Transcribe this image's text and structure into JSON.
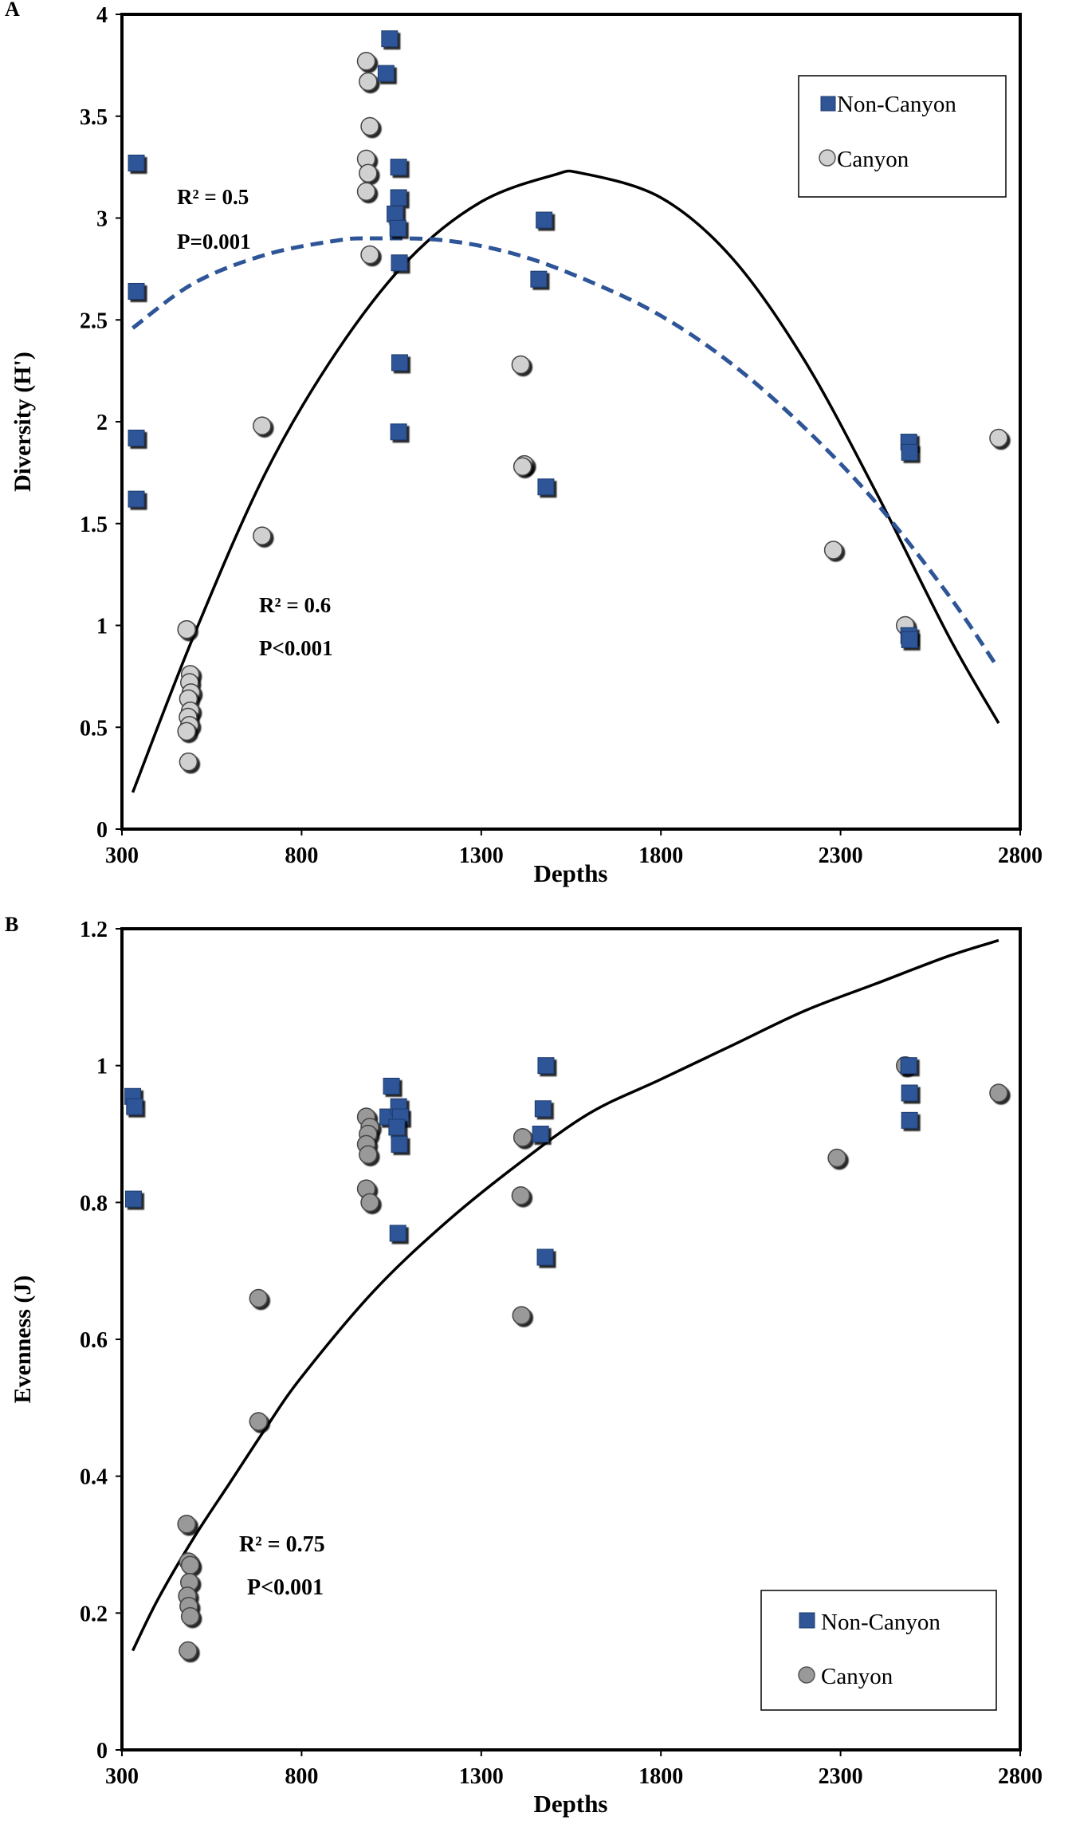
{
  "chart_data": [
    {
      "panel": "A",
      "type": "scatter",
      "xlabel": "Depths",
      "ylabel": "Diversity  (H')",
      "xlim": [
        300,
        2800
      ],
      "ylim": [
        0,
        4
      ],
      "xticks": [
        300,
        800,
        1300,
        1800,
        2300,
        2800
      ],
      "yticks": [
        0,
        0.5,
        1,
        1.5,
        2,
        2.5,
        3,
        3.5,
        4
      ],
      "ytick_labels": [
        "0",
        "0.5",
        "1",
        "1.5",
        "2",
        "2.5",
        "3",
        "3.5",
        "4"
      ],
      "legend": {
        "position": "top-right",
        "entries": [
          "Non-Canyon",
          "Canyon"
        ]
      },
      "colors": {
        "noncanyon": "#2f5597",
        "canyon": "#d0d0d0",
        "dashed": "#2e5597",
        "solid": "#000000"
      },
      "series": [
        {
          "name": "Non-Canyon",
          "marker": "square",
          "points": [
            [
              340,
              3.27
            ],
            [
              340,
              2.64
            ],
            [
              340,
              1.92
            ],
            [
              340,
              1.62
            ],
            [
              1045,
              3.88
            ],
            [
              1035,
              3.71
            ],
            [
              1070,
              3.25
            ],
            [
              1070,
              3.1
            ],
            [
              1060,
              3.02
            ],
            [
              1068,
              2.95
            ],
            [
              1072,
              2.78
            ],
            [
              1073,
              2.29
            ],
            [
              1070,
              1.95
            ],
            [
              1475,
              2.99
            ],
            [
              1460,
              2.7
            ],
            [
              1480,
              1.68
            ],
            [
              2490,
              1.9
            ],
            [
              2492,
              1.85
            ],
            [
              2490,
              0.95
            ],
            [
              2492,
              0.93
            ]
          ]
        },
        {
          "name": "Canyon",
          "marker": "circle",
          "points": [
            [
              980,
              3.77
            ],
            [
              985,
              3.67
            ],
            [
              990,
              3.45
            ],
            [
              980,
              3.29
            ],
            [
              985,
              3.22
            ],
            [
              980,
              3.13
            ],
            [
              990,
              2.82
            ],
            [
              480,
              0.98
            ],
            [
              490,
              0.76
            ],
            [
              488,
              0.72
            ],
            [
              492,
              0.67
            ],
            [
              485,
              0.64
            ],
            [
              490,
              0.58
            ],
            [
              484,
              0.55
            ],
            [
              488,
              0.51
            ],
            [
              480,
              0.48
            ],
            [
              485,
              0.33
            ],
            [
              690,
              1.98
            ],
            [
              690,
              1.44
            ],
            [
              1410,
              2.28
            ],
            [
              1420,
              1.79
            ],
            [
              1415,
              1.78
            ],
            [
              2280,
              1.37
            ],
            [
              2480,
              1.0
            ],
            [
              2740,
              1.92
            ]
          ]
        }
      ],
      "fits": [
        {
          "name": "Canyon fit",
          "style": "solid",
          "r2_label": "R² = 0.6",
          "p_label": "P<0.001",
          "points": [
            [
              330,
              0.18
            ],
            [
              500,
              0.95
            ],
            [
              700,
              1.75
            ],
            [
              900,
              2.35
            ],
            [
              1100,
              2.8
            ],
            [
              1300,
              3.08
            ],
            [
              1500,
              3.21
            ],
            [
              1580,
              3.22
            ],
            [
              1800,
              3.1
            ],
            [
              2000,
              2.8
            ],
            [
              2200,
              2.3
            ],
            [
              2400,
              1.65
            ],
            [
              2600,
              0.95
            ],
            [
              2740,
              0.52
            ]
          ]
        },
        {
          "name": "Non-Canyon fit",
          "style": "dashed",
          "r2_label": "R² = 0.5",
          "p_label": "P=0.001",
          "points": [
            [
              330,
              2.46
            ],
            [
              500,
              2.68
            ],
            [
              700,
              2.82
            ],
            [
              900,
              2.89
            ],
            [
              1000,
              2.9
            ],
            [
              1200,
              2.89
            ],
            [
              1400,
              2.82
            ],
            [
              1600,
              2.69
            ],
            [
              1800,
              2.52
            ],
            [
              2000,
              2.28
            ],
            [
              2200,
              1.97
            ],
            [
              2400,
              1.6
            ],
            [
              2600,
              1.15
            ],
            [
              2735,
              0.8
            ]
          ]
        }
      ]
    },
    {
      "panel": "B",
      "type": "scatter",
      "xlabel": "Depths",
      "ylabel": "Evenness (J)",
      "xlim": [
        300,
        2800
      ],
      "ylim": [
        0,
        1.2
      ],
      "xticks": [
        300,
        800,
        1300,
        1800,
        2300,
        2800
      ],
      "yticks": [
        0,
        0.2,
        0.4,
        0.6,
        0.8,
        1,
        1.2
      ],
      "ytick_labels": [
        "0",
        "0.2",
        "0.4",
        "0.6",
        "0.8",
        "1",
        "1.2"
      ],
      "legend": {
        "position": "bottom-right",
        "entries": [
          "Non-Canyon",
          "Canyon"
        ]
      },
      "colors": {
        "noncanyon": "#2f5597",
        "canyon": "#999999",
        "solid": "#000000"
      },
      "series": [
        {
          "name": "Non-Canyon",
          "marker": "square",
          "points": [
            [
              330,
              0.955
            ],
            [
              335,
              0.94
            ],
            [
              332,
              0.805
            ],
            [
              1050,
              0.97
            ],
            [
              1040,
              0.925
            ],
            [
              1070,
              0.94
            ],
            [
              1075,
              0.925
            ],
            [
              1065,
              0.91
            ],
            [
              1072,
              0.885
            ],
            [
              1068,
              0.755
            ],
            [
              1480,
              1.0
            ],
            [
              1472,
              0.937
            ],
            [
              1465,
              0.9
            ],
            [
              1478,
              0.72
            ],
            [
              2490,
              1.0
            ],
            [
              2492,
              0.96
            ],
            [
              2492,
              0.92
            ]
          ]
        },
        {
          "name": "Canyon",
          "marker": "circle",
          "points": [
            [
              980,
              0.925
            ],
            [
              990,
              0.91
            ],
            [
              985,
              0.9
            ],
            [
              980,
              0.885
            ],
            [
              985,
              0.87
            ],
            [
              980,
              0.82
            ],
            [
              990,
              0.8
            ],
            [
              480,
              0.33
            ],
            [
              485,
              0.275
            ],
            [
              490,
              0.27
            ],
            [
              488,
              0.245
            ],
            [
              482,
              0.225
            ],
            [
              486,
              0.21
            ],
            [
              490,
              0.195
            ],
            [
              484,
              0.145
            ],
            [
              680,
              0.66
            ],
            [
              680,
              0.48
            ],
            [
              1415,
              0.895
            ],
            [
              1410,
              0.81
            ],
            [
              1412,
              0.635
            ],
            [
              2290,
              0.865
            ],
            [
              2480,
              1.0
            ],
            [
              2740,
              0.96
            ]
          ]
        }
      ],
      "fits": [
        {
          "name": "Fit",
          "style": "solid",
          "r2_label": "R² = 0.75",
          "p_label": "P<0.001",
          "points": [
            [
              330,
              0.145
            ],
            [
              400,
              0.22
            ],
            [
              500,
              0.31
            ],
            [
              600,
              0.39
            ],
            [
              700,
              0.47
            ],
            [
              800,
              0.545
            ],
            [
              1000,
              0.67
            ],
            [
              1200,
              0.77
            ],
            [
              1400,
              0.855
            ],
            [
              1600,
              0.93
            ],
            [
              1800,
              0.98
            ],
            [
              2000,
              1.03
            ],
            [
              2200,
              1.08
            ],
            [
              2400,
              1.12
            ],
            [
              2600,
              1.16
            ],
            [
              2740,
              1.183
            ]
          ]
        }
      ]
    }
  ]
}
